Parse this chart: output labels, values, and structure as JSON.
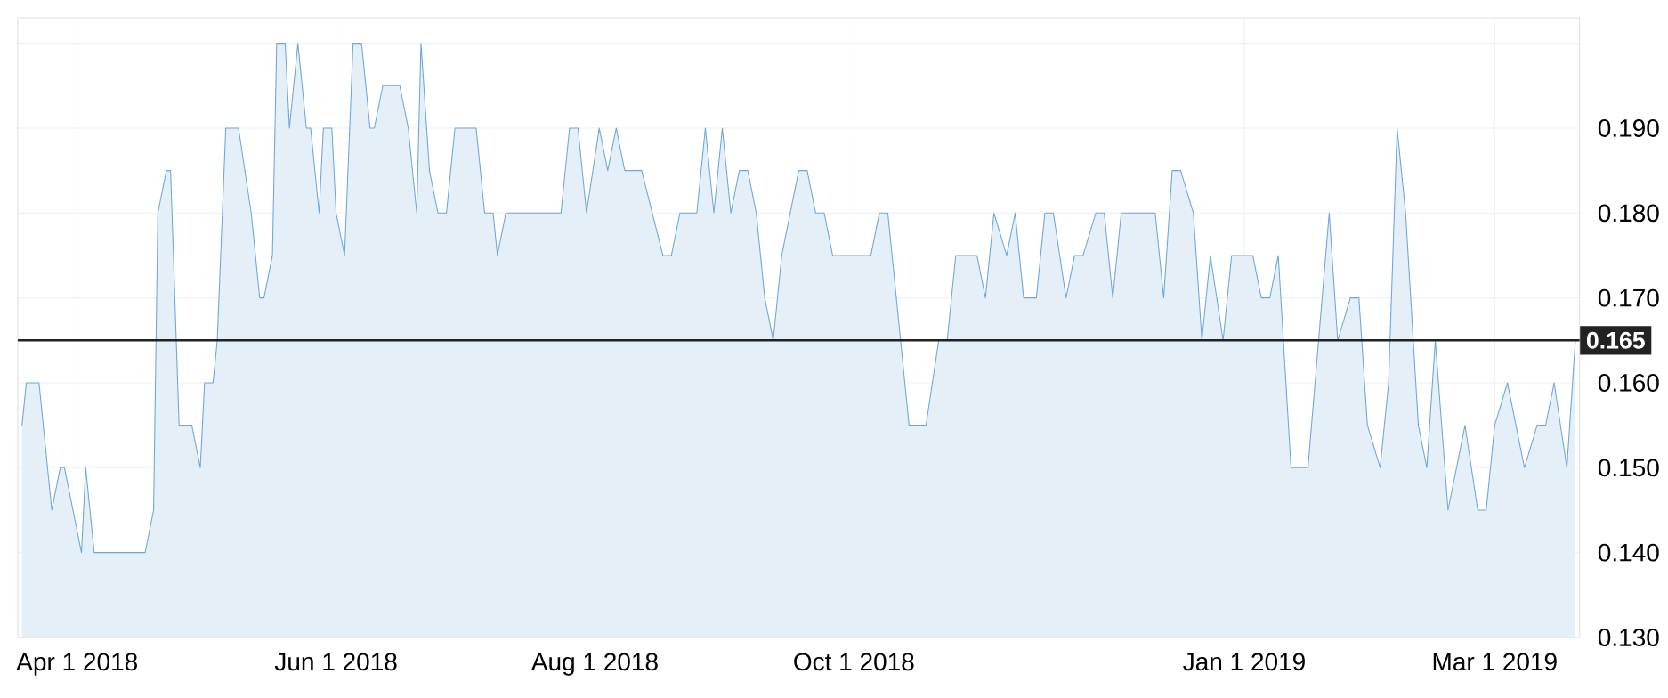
{
  "chart_data": {
    "type": "area",
    "x": [
      "2018-03-19",
      "2018-03-20",
      "2018-03-23",
      "2018-03-25",
      "2018-03-26",
      "2018-03-28",
      "2018-03-29",
      "2018-04-02",
      "2018-04-03",
      "2018-04-05",
      "2018-04-17",
      "2018-04-19",
      "2018-04-20",
      "2018-04-22",
      "2018-04-23",
      "2018-04-25",
      "2018-04-28",
      "2018-04-30",
      "2018-05-01",
      "2018-05-03",
      "2018-05-04",
      "2018-05-06",
      "2018-05-09",
      "2018-05-12",
      "2018-05-14",
      "2018-05-15",
      "2018-05-17",
      "2018-05-18",
      "2018-05-20",
      "2018-05-21",
      "2018-05-23",
      "2018-05-25",
      "2018-05-26",
      "2018-05-28",
      "2018-05-29",
      "2018-05-31",
      "2018-06-01",
      "2018-06-03",
      "2018-06-05",
      "2018-06-07",
      "2018-06-09",
      "2018-06-10",
      "2018-06-12",
      "2018-06-16",
      "2018-06-18",
      "2018-06-20",
      "2018-06-21",
      "2018-06-23",
      "2018-06-25",
      "2018-06-27",
      "2018-06-29",
      "2018-07-04",
      "2018-07-06",
      "2018-07-08",
      "2018-07-09",
      "2018-07-11",
      "2018-07-24",
      "2018-07-26",
      "2018-07-28",
      "2018-07-30",
      "2018-08-02",
      "2018-08-04",
      "2018-08-06",
      "2018-08-08",
      "2018-08-12",
      "2018-08-17",
      "2018-08-19",
      "2018-08-21",
      "2018-08-25",
      "2018-08-27",
      "2018-08-29",
      "2018-08-31",
      "2018-09-02",
      "2018-09-04",
      "2018-09-06",
      "2018-09-08",
      "2018-09-10",
      "2018-09-12",
      "2018-09-14",
      "2018-09-18",
      "2018-09-20",
      "2018-09-22",
      "2018-09-24",
      "2018-09-26",
      "2018-10-05",
      "2018-10-07",
      "2018-10-09",
      "2018-10-14",
      "2018-10-18",
      "2018-10-21",
      "2018-10-23",
      "2018-10-25",
      "2018-10-30",
      "2018-11-01",
      "2018-11-03",
      "2018-11-06",
      "2018-11-08",
      "2018-11-10",
      "2018-11-13",
      "2018-11-15",
      "2018-11-17",
      "2018-11-20",
      "2018-11-22",
      "2018-11-24",
      "2018-11-27",
      "2018-11-29",
      "2018-12-01",
      "2018-12-03",
      "2018-12-11",
      "2018-12-13",
      "2018-12-15",
      "2018-12-17",
      "2018-12-20",
      "2018-12-22",
      "2018-12-24",
      "2018-12-27",
      "2018-12-29",
      "2019-01-03",
      "2019-01-05",
      "2019-01-07",
      "2019-01-09",
      "2019-01-12",
      "2019-01-16",
      "2019-01-21",
      "2019-01-23",
      "2019-01-26",
      "2019-01-28",
      "2019-01-30",
      "2019-02-02",
      "2019-02-04",
      "2019-02-06",
      "2019-02-08",
      "2019-02-11",
      "2019-02-13",
      "2019-02-15",
      "2019-02-18",
      "2019-02-22",
      "2019-02-25",
      "2019-02-27",
      "2019-03-01",
      "2019-03-04",
      "2019-03-08",
      "2019-03-11",
      "2019-03-13",
      "2019-03-15",
      "2019-03-18",
      "2019-03-20"
    ],
    "values": [
      0.155,
      0.16,
      0.16,
      0.15,
      0.145,
      0.15,
      0.15,
      0.14,
      0.15,
      0.14,
      0.14,
      0.145,
      0.18,
      0.185,
      0.185,
      0.155,
      0.155,
      0.15,
      0.16,
      0.16,
      0.165,
      0.19,
      0.19,
      0.18,
      0.17,
      0.17,
      0.175,
      0.2,
      0.2,
      0.19,
      0.2,
      0.19,
      0.19,
      0.18,
      0.19,
      0.19,
      0.18,
      0.175,
      0.2,
      0.2,
      0.19,
      0.19,
      0.195,
      0.195,
      0.19,
      0.18,
      0.2,
      0.185,
      0.18,
      0.18,
      0.19,
      0.19,
      0.18,
      0.18,
      0.175,
      0.18,
      0.18,
      0.19,
      0.19,
      0.18,
      0.19,
      0.185,
      0.19,
      0.185,
      0.185,
      0.175,
      0.175,
      0.18,
      0.18,
      0.19,
      0.18,
      0.19,
      0.18,
      0.185,
      0.185,
      0.18,
      0.17,
      0.165,
      0.175,
      0.185,
      0.185,
      0.18,
      0.18,
      0.175,
      0.175,
      0.18,
      0.18,
      0.155,
      0.155,
      0.165,
      0.165,
      0.175,
      0.175,
      0.17,
      0.18,
      0.175,
      0.18,
      0.17,
      0.17,
      0.18,
      0.18,
      0.17,
      0.175,
      0.175,
      0.18,
      0.18,
      0.17,
      0.18,
      0.18,
      0.17,
      0.185,
      0.185,
      0.18,
      0.165,
      0.175,
      0.165,
      0.175,
      0.175,
      0.17,
      0.17,
      0.175,
      0.15,
      0.15,
      0.18,
      0.165,
      0.17,
      0.17,
      0.155,
      0.15,
      0.16,
      0.19,
      0.18,
      0.155,
      0.15,
      0.165,
      0.145,
      0.155,
      0.145,
      0.145,
      0.155,
      0.16,
      0.15,
      0.155,
      0.155,
      0.16,
      0.15,
      0.165
    ],
    "color": "#6fa6d9",
    "xlim": [
      "2018-03-18",
      "2019-03-21"
    ],
    "xticks": [
      {
        "value": "2018-04-01",
        "label": "Apr 1 2018"
      },
      {
        "value": "2018-06-01",
        "label": "Jun 1 2018"
      },
      {
        "value": "2018-08-01",
        "label": "Aug 1 2018"
      },
      {
        "value": "2018-10-01",
        "label": "Oct 1 2018"
      },
      {
        "value": "2019-01-01",
        "label": "Jan 1 2019"
      },
      {
        "value": "2019-03-01",
        "label": "Mar 1 2019"
      }
    ],
    "ylim": [
      0.13,
      0.203
    ],
    "yticks": [
      {
        "value": 0.13,
        "label": "0.130"
      },
      {
        "value": 0.14,
        "label": "0.140"
      },
      {
        "value": 0.15,
        "label": "0.150"
      },
      {
        "value": 0.16,
        "label": "0.160"
      },
      {
        "value": 0.17,
        "label": "0.170"
      },
      {
        "value": 0.18,
        "label": "0.180"
      },
      {
        "value": 0.19,
        "label": "0.190"
      },
      {
        "value": 0.2,
        "label": null
      }
    ],
    "ref_lines": [
      {
        "axis": "y",
        "value": 0.165,
        "label": "0.165",
        "color": "#222222"
      }
    ],
    "grid": true
  }
}
